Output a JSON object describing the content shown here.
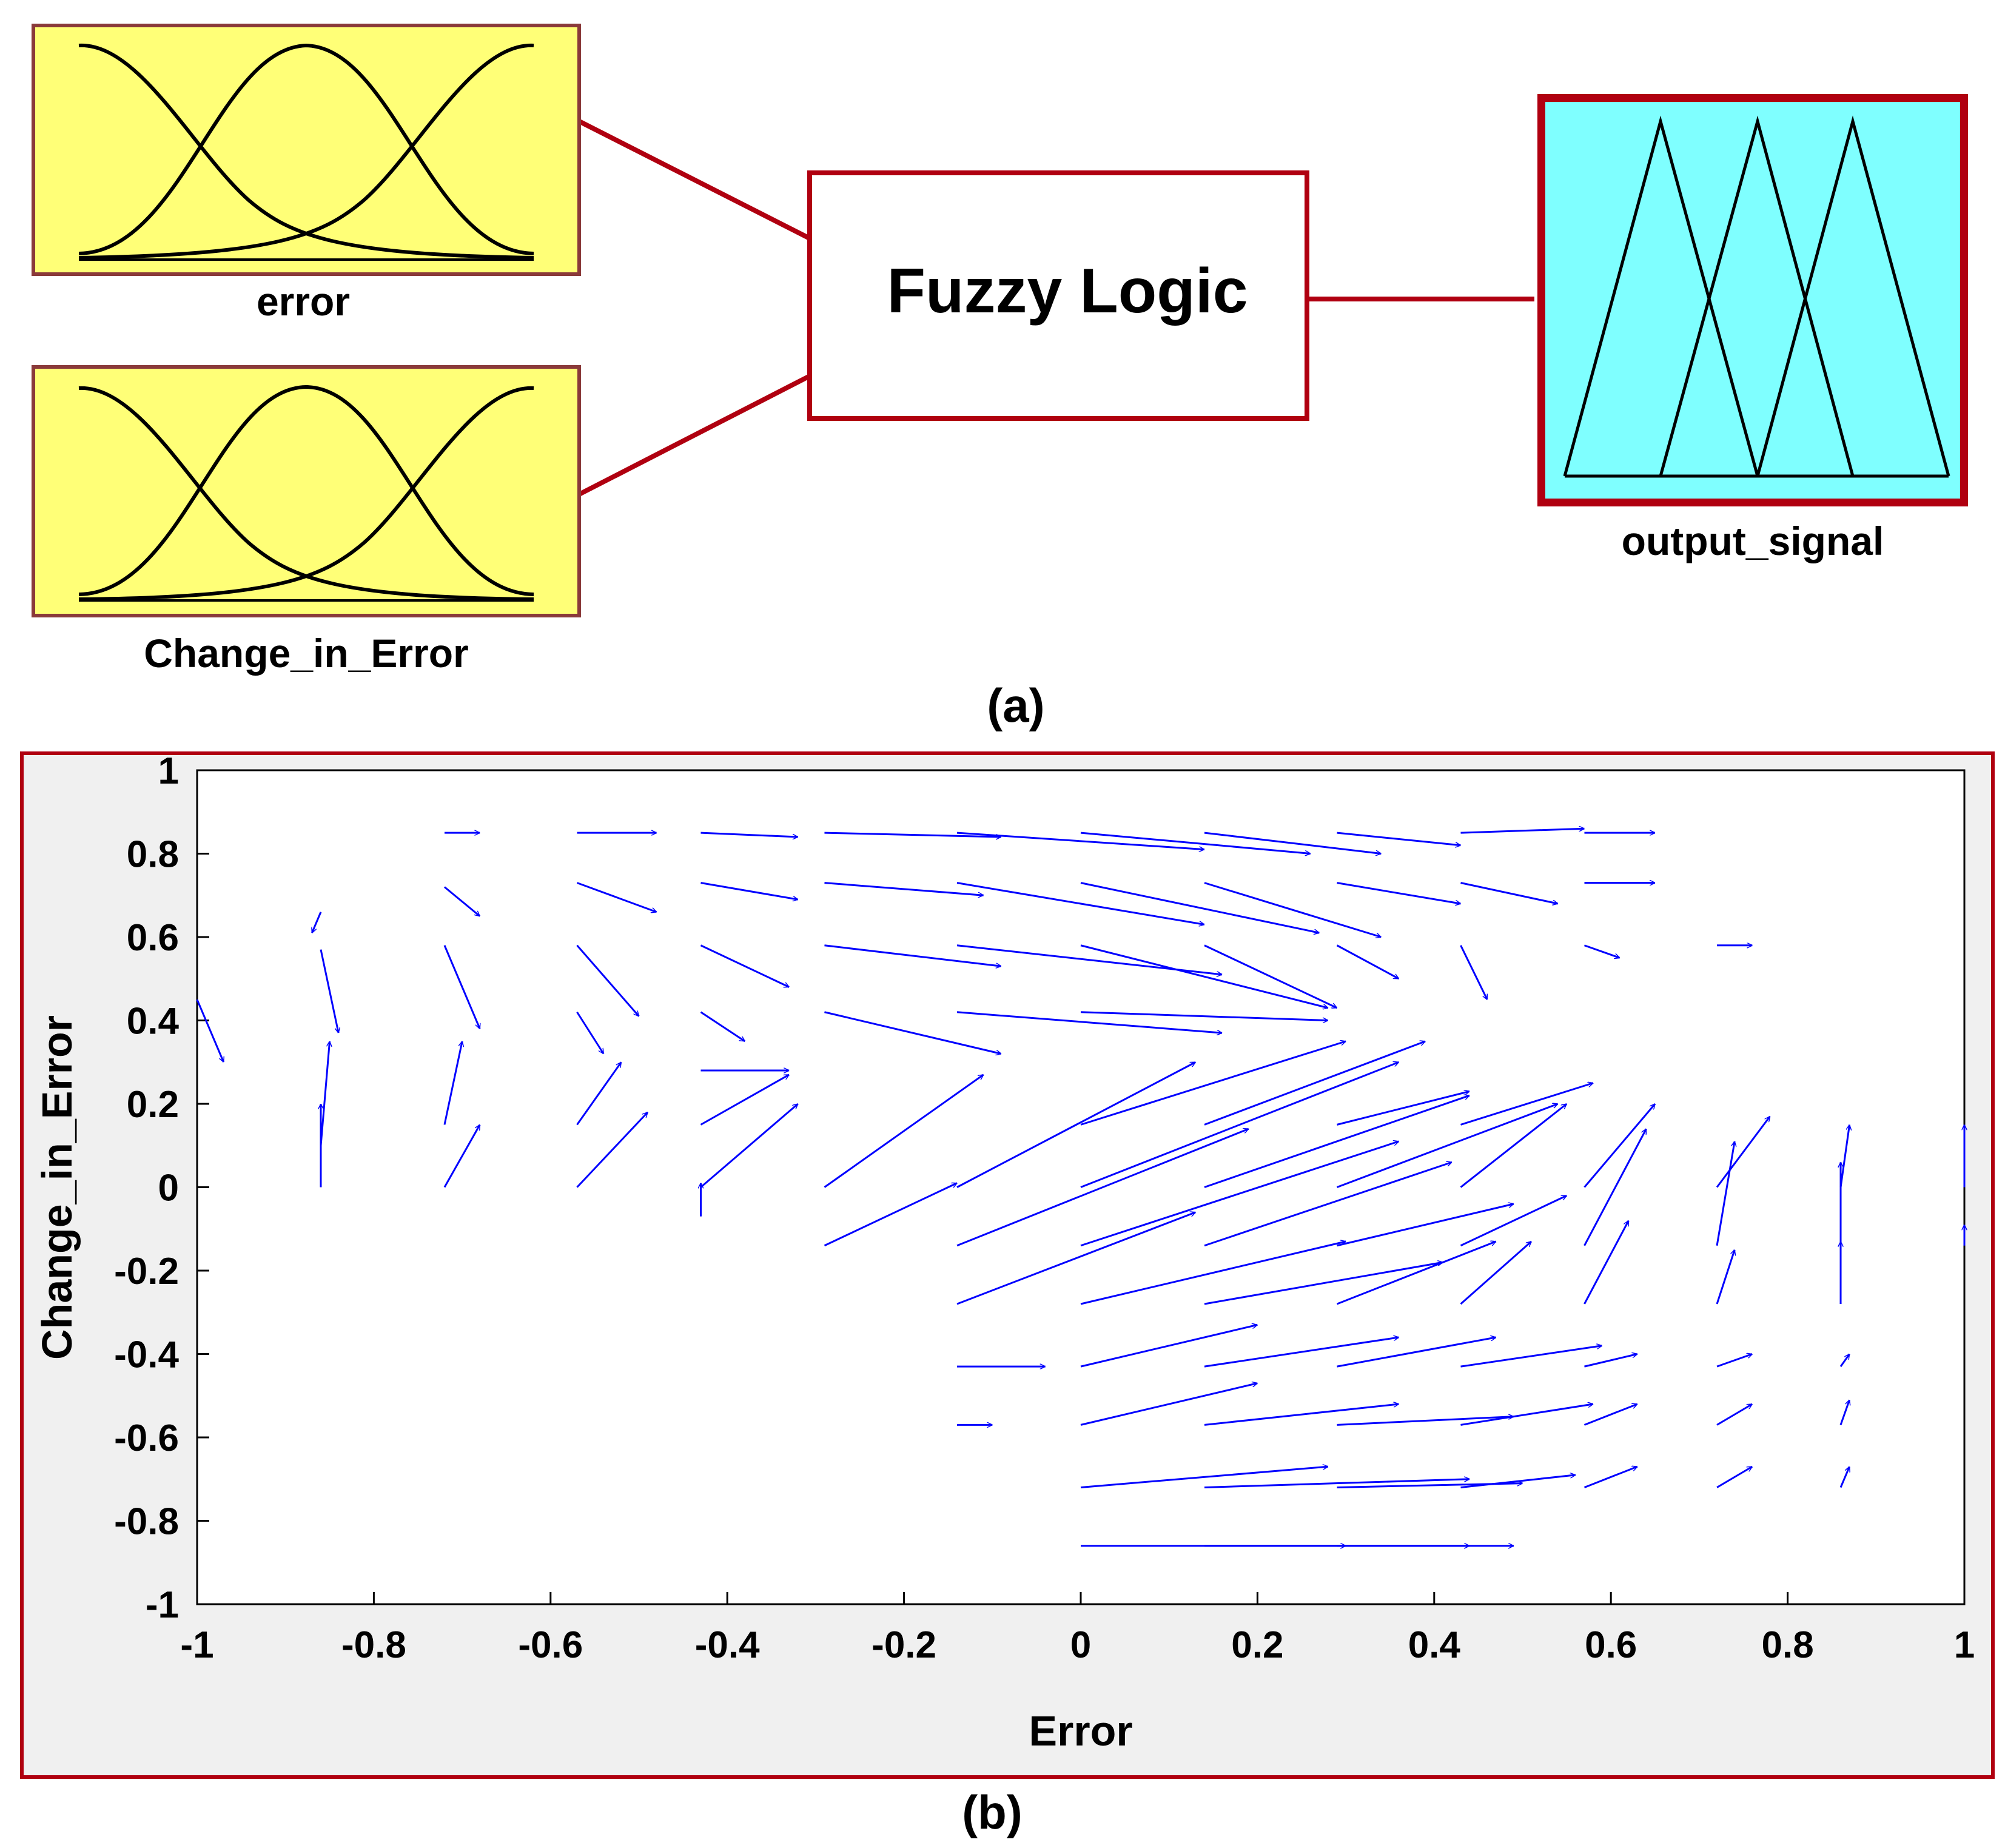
{
  "colors": {
    "frame": "#b00010",
    "input_box_fill": "#ffff77",
    "input_box_border": "#8a3a3a",
    "output_box_fill": "#7fffff",
    "arrow": "#0000ff",
    "plot_bg": "#f0f0f0"
  },
  "part_a": {
    "inputs": [
      {
        "label": "error",
        "mf_shape": "gaussian"
      },
      {
        "label": "Change_in_Error",
        "mf_shape": "gaussian"
      }
    ],
    "center_block": {
      "label": "Fuzzy Logic"
    },
    "output": {
      "label": "output_signal",
      "mf_shape": "triangular"
    },
    "caption": "(a)"
  },
  "part_b": {
    "caption": "(b)",
    "chart_data": {
      "type": "quiver",
      "xlabel": "Error",
      "ylabel": "Change_in_Error",
      "xlim": [
        -1,
        1
      ],
      "ylim": [
        -1,
        1
      ],
      "xticks": [
        "-1",
        "-0.8",
        "-0.6",
        "-0.4",
        "-0.2",
        "0",
        "0.2",
        "0.4",
        "0.6",
        "0.8",
        "1"
      ],
      "yticks": [
        "1",
        "0.8",
        "0.6",
        "0.4",
        "0.2",
        "0",
        "-0.2",
        "-0.4",
        "-0.6",
        "-0.8",
        "-1"
      ],
      "grid": false,
      "vectors": [
        {
          "x": -1.0,
          "y": 0.45,
          "dx": 0.03,
          "dy": -0.15
        },
        {
          "x": -0.86,
          "y": 0.57,
          "dx": 0.02,
          "dy": -0.2
        },
        {
          "x": -0.86,
          "y": 0.0,
          "dx": 0.0,
          "dy": 0.2
        },
        {
          "x": -0.86,
          "y": 0.1,
          "dx": 0.01,
          "dy": 0.25
        },
        {
          "x": -0.86,
          "y": 0.66,
          "dx": -0.01,
          "dy": -0.05
        },
        {
          "x": -0.72,
          "y": 0.58,
          "dx": 0.04,
          "dy": -0.2
        },
        {
          "x": -0.72,
          "y": 0.0,
          "dx": 0.04,
          "dy": 0.15
        },
        {
          "x": -0.72,
          "y": 0.15,
          "dx": 0.02,
          "dy": 0.2
        },
        {
          "x": -0.72,
          "y": 0.85,
          "dx": 0.04,
          "dy": 0.0
        },
        {
          "x": -0.72,
          "y": 0.72,
          "dx": 0.04,
          "dy": -0.07
        },
        {
          "x": -0.57,
          "y": 0.58,
          "dx": 0.07,
          "dy": -0.17
        },
        {
          "x": -0.57,
          "y": 0.0,
          "dx": 0.08,
          "dy": 0.18
        },
        {
          "x": -0.57,
          "y": 0.15,
          "dx": 0.05,
          "dy": 0.15
        },
        {
          "x": -0.57,
          "y": 0.42,
          "dx": 0.03,
          "dy": -0.1
        },
        {
          "x": -0.57,
          "y": 0.85,
          "dx": 0.09,
          "dy": 0.0
        },
        {
          "x": -0.57,
          "y": 0.73,
          "dx": 0.09,
          "dy": -0.07
        },
        {
          "x": -0.43,
          "y": 0.58,
          "dx": 0.1,
          "dy": -0.1
        },
        {
          "x": -0.43,
          "y": 0.0,
          "dx": 0.11,
          "dy": 0.2
        },
        {
          "x": -0.43,
          "y": 0.15,
          "dx": 0.1,
          "dy": 0.12
        },
        {
          "x": -0.43,
          "y": 0.42,
          "dx": 0.05,
          "dy": -0.07
        },
        {
          "x": -0.43,
          "y": 0.28,
          "dx": 0.1,
          "dy": 0.0
        },
        {
          "x": -0.43,
          "y": 0.85,
          "dx": 0.11,
          "dy": -0.01
        },
        {
          "x": -0.43,
          "y": 0.73,
          "dx": 0.11,
          "dy": -0.04
        },
        {
          "x": -0.43,
          "y": -0.07,
          "dx": 0.0,
          "dy": 0.08
        },
        {
          "x": -0.29,
          "y": -0.14,
          "dx": 0.15,
          "dy": 0.15
        },
        {
          "x": -0.29,
          "y": 0.0,
          "dx": 0.18,
          "dy": 0.27
        },
        {
          "x": -0.29,
          "y": 0.58,
          "dx": 0.2,
          "dy": -0.05
        },
        {
          "x": -0.29,
          "y": 0.42,
          "dx": 0.2,
          "dy": -0.1
        },
        {
          "x": -0.29,
          "y": 0.85,
          "dx": 0.2,
          "dy": -0.01
        },
        {
          "x": -0.29,
          "y": 0.73,
          "dx": 0.18,
          "dy": -0.03
        },
        {
          "x": -0.14,
          "y": -0.28,
          "dx": 0.27,
          "dy": 0.22
        },
        {
          "x": -0.14,
          "y": -0.14,
          "dx": 0.33,
          "dy": 0.28
        },
        {
          "x": -0.14,
          "y": 0.0,
          "dx": 0.27,
          "dy": 0.3
        },
        {
          "x": -0.14,
          "y": 0.58,
          "dx": 0.3,
          "dy": -0.07
        },
        {
          "x": -0.14,
          "y": 0.42,
          "dx": 0.3,
          "dy": -0.05
        },
        {
          "x": -0.14,
          "y": 0.85,
          "dx": 0.28,
          "dy": -0.04
        },
        {
          "x": -0.14,
          "y": 0.73,
          "dx": 0.28,
          "dy": -0.1
        },
        {
          "x": -0.14,
          "y": -0.43,
          "dx": 0.1,
          "dy": 0.0
        },
        {
          "x": -0.14,
          "y": -0.57,
          "dx": 0.04,
          "dy": 0.0
        },
        {
          "x": 0.0,
          "y": -0.28,
          "dx": 0.3,
          "dy": 0.15
        },
        {
          "x": 0.0,
          "y": -0.14,
          "dx": 0.36,
          "dy": 0.25
        },
        {
          "x": 0.0,
          "y": 0.0,
          "dx": 0.36,
          "dy": 0.3
        },
        {
          "x": 0.0,
          "y": 0.15,
          "dx": 0.3,
          "dy": 0.2
        },
        {
          "x": 0.0,
          "y": 0.58,
          "dx": 0.28,
          "dy": -0.15
        },
        {
          "x": 0.0,
          "y": 0.42,
          "dx": 0.28,
          "dy": -0.02
        },
        {
          "x": 0.0,
          "y": 0.85,
          "dx": 0.26,
          "dy": -0.05
        },
        {
          "x": 0.0,
          "y": 0.73,
          "dx": 0.27,
          "dy": -0.12
        },
        {
          "x": 0.0,
          "y": -0.43,
          "dx": 0.2,
          "dy": 0.1
        },
        {
          "x": 0.0,
          "y": -0.57,
          "dx": 0.2,
          "dy": 0.1
        },
        {
          "x": 0.0,
          "y": -0.72,
          "dx": 0.28,
          "dy": 0.05
        },
        {
          "x": 0.0,
          "y": -0.86,
          "dx": 0.3,
          "dy": 0.0
        },
        {
          "x": 0.14,
          "y": -0.28,
          "dx": 0.27,
          "dy": 0.1
        },
        {
          "x": 0.14,
          "y": -0.14,
          "dx": 0.28,
          "dy": 0.2
        },
        {
          "x": 0.14,
          "y": 0.0,
          "dx": 0.3,
          "dy": 0.22
        },
        {
          "x": 0.14,
          "y": 0.15,
          "dx": 0.25,
          "dy": 0.2
        },
        {
          "x": 0.14,
          "y": 0.58,
          "dx": 0.15,
          "dy": -0.15
        },
        {
          "x": 0.14,
          "y": 0.85,
          "dx": 0.2,
          "dy": -0.05
        },
        {
          "x": 0.14,
          "y": 0.73,
          "dx": 0.2,
          "dy": -0.13
        },
        {
          "x": 0.14,
          "y": -0.43,
          "dx": 0.22,
          "dy": 0.07
        },
        {
          "x": 0.14,
          "y": -0.57,
          "dx": 0.22,
          "dy": 0.05
        },
        {
          "x": 0.14,
          "y": -0.72,
          "dx": 0.3,
          "dy": 0.02
        },
        {
          "x": 0.14,
          "y": -0.86,
          "dx": 0.3,
          "dy": 0.0
        },
        {
          "x": 0.29,
          "y": -0.28,
          "dx": 0.18,
          "dy": 0.15
        },
        {
          "x": 0.29,
          "y": -0.14,
          "dx": 0.2,
          "dy": 0.1
        },
        {
          "x": 0.29,
          "y": 0.0,
          "dx": 0.25,
          "dy": 0.2
        },
        {
          "x": 0.29,
          "y": 0.15,
          "dx": 0.15,
          "dy": 0.08
        },
        {
          "x": 0.29,
          "y": 0.58,
          "dx": 0.07,
          "dy": -0.08
        },
        {
          "x": 0.29,
          "y": 0.85,
          "dx": 0.14,
          "dy": -0.03
        },
        {
          "x": 0.29,
          "y": 0.73,
          "dx": 0.14,
          "dy": -0.05
        },
        {
          "x": 0.29,
          "y": -0.43,
          "dx": 0.18,
          "dy": 0.07
        },
        {
          "x": 0.29,
          "y": -0.57,
          "dx": 0.2,
          "dy": 0.02
        },
        {
          "x": 0.29,
          "y": -0.72,
          "dx": 0.21,
          "dy": 0.01
        },
        {
          "x": 0.29,
          "y": -0.86,
          "dx": 0.2,
          "dy": 0.0
        },
        {
          "x": 0.43,
          "y": -0.28,
          "dx": 0.08,
          "dy": 0.15
        },
        {
          "x": 0.43,
          "y": -0.14,
          "dx": 0.12,
          "dy": 0.12
        },
        {
          "x": 0.43,
          "y": 0.0,
          "dx": 0.12,
          "dy": 0.2
        },
        {
          "x": 0.43,
          "y": 0.15,
          "dx": 0.15,
          "dy": 0.1
        },
        {
          "x": 0.43,
          "y": 0.58,
          "dx": 0.03,
          "dy": -0.13
        },
        {
          "x": 0.43,
          "y": 0.85,
          "dx": 0.14,
          "dy": 0.01
        },
        {
          "x": 0.43,
          "y": 0.73,
          "dx": 0.11,
          "dy": -0.05
        },
        {
          "x": 0.43,
          "y": -0.43,
          "dx": 0.16,
          "dy": 0.05
        },
        {
          "x": 0.43,
          "y": -0.57,
          "dx": 0.15,
          "dy": 0.05
        },
        {
          "x": 0.43,
          "y": -0.72,
          "dx": 0.13,
          "dy": 0.03
        },
        {
          "x": 0.57,
          "y": -0.28,
          "dx": 0.05,
          "dy": 0.2
        },
        {
          "x": 0.57,
          "y": -0.14,
          "dx": 0.07,
          "dy": 0.28
        },
        {
          "x": 0.57,
          "y": 0.0,
          "dx": 0.08,
          "dy": 0.2
        },
        {
          "x": 0.57,
          "y": 0.85,
          "dx": 0.08,
          "dy": 0.0
        },
        {
          "x": 0.57,
          "y": 0.73,
          "dx": 0.08,
          "dy": 0.0
        },
        {
          "x": 0.57,
          "y": 0.58,
          "dx": 0.04,
          "dy": -0.03
        },
        {
          "x": 0.57,
          "y": -0.43,
          "dx": 0.06,
          "dy": 0.03
        },
        {
          "x": 0.57,
          "y": -0.57,
          "dx": 0.06,
          "dy": 0.05
        },
        {
          "x": 0.57,
          "y": -0.72,
          "dx": 0.06,
          "dy": 0.05
        },
        {
          "x": 0.72,
          "y": -0.28,
          "dx": 0.02,
          "dy": 0.13
        },
        {
          "x": 0.72,
          "y": -0.14,
          "dx": 0.02,
          "dy": 0.25
        },
        {
          "x": 0.72,
          "y": 0.0,
          "dx": 0.06,
          "dy": 0.17
        },
        {
          "x": 0.72,
          "y": 0.58,
          "dx": 0.04,
          "dy": 0.0
        },
        {
          "x": 0.72,
          "y": -0.43,
          "dx": 0.04,
          "dy": 0.03
        },
        {
          "x": 0.72,
          "y": -0.57,
          "dx": 0.04,
          "dy": 0.05
        },
        {
          "x": 0.72,
          "y": -0.72,
          "dx": 0.04,
          "dy": 0.05
        },
        {
          "x": 0.86,
          "y": -0.28,
          "dx": 0.0,
          "dy": 0.15
        },
        {
          "x": 0.86,
          "y": -0.14,
          "dx": 0.0,
          "dy": 0.2
        },
        {
          "x": 0.86,
          "y": 0.0,
          "dx": 0.01,
          "dy": 0.15
        },
        {
          "x": 0.86,
          "y": -0.43,
          "dx": 0.01,
          "dy": 0.03
        },
        {
          "x": 0.86,
          "y": -0.57,
          "dx": 0.01,
          "dy": 0.06
        },
        {
          "x": 0.86,
          "y": -0.72,
          "dx": 0.01,
          "dy": 0.05
        },
        {
          "x": 1.0,
          "y": -0.14,
          "dx": 0.0,
          "dy": 0.05
        },
        {
          "x": 1.0,
          "y": 0.0,
          "dx": 0.0,
          "dy": 0.15
        }
      ]
    }
  }
}
